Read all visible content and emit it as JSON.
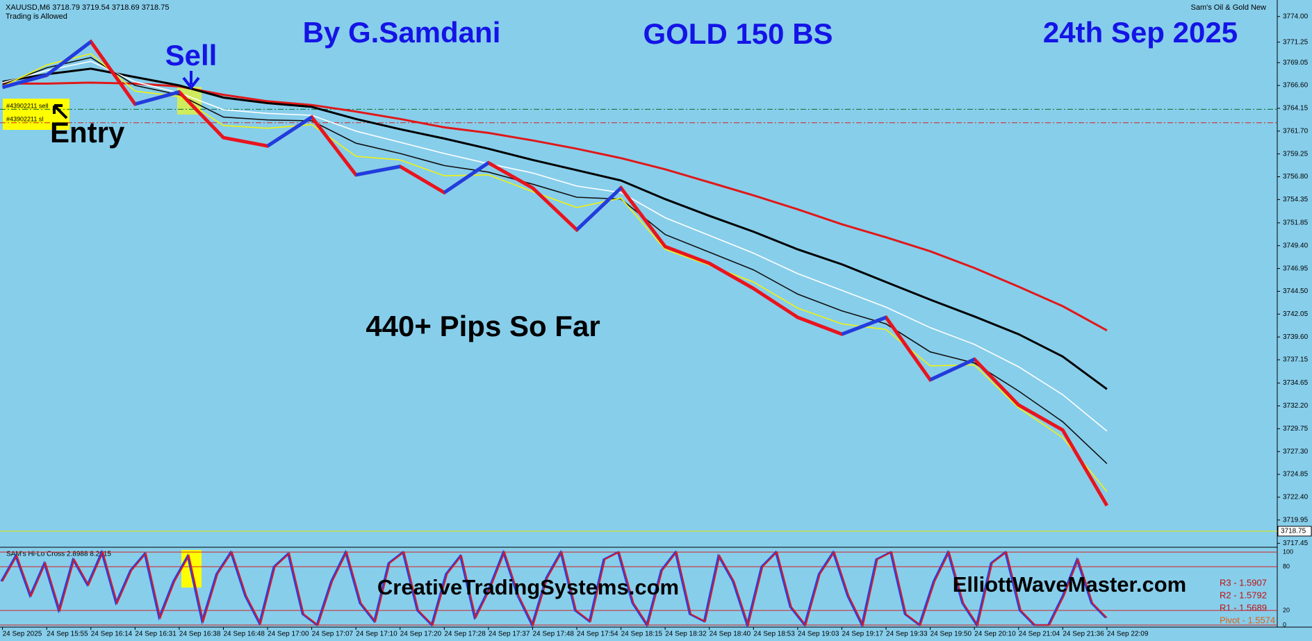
{
  "chart_data": {
    "type": "line",
    "symbol_header": "XAUUSD,M6  3718.79 3719.54 3718.69 3718.75",
    "trading_status": "Trading is Allowed",
    "indicator_title": "Sam's Oil & Gold New",
    "title": "GOLD 150 BS",
    "author": "By G.Samdani",
    "date": "24th Sep 2025",
    "signal_label": "Sell",
    "entry_label": "Entry",
    "result_label": "440+ Pips So Far",
    "website_left": "CreativeTradingSystems.com",
    "website_right": "ElliottWaveMaster.com",
    "order_labels": [
      "#43902211 sell",
      "#43902211 sl"
    ],
    "sell_level": 3764.04,
    "stop_level": 3762.6,
    "current_price": 3718.75,
    "categories": [
      "24 Sep 2025",
      "24 Sep 15:55",
      "24 Sep 16:14",
      "24 Sep 16:31",
      "24 Sep 16:38",
      "24 Sep 16:48",
      "24 Sep 17:00",
      "24 Sep 17:07",
      "24 Sep 17:10",
      "24 Sep 17:20",
      "24 Sep 17:28",
      "24 Sep 17:37",
      "24 Sep 17:48",
      "24 Sep 17:54",
      "24 Sep 18:15",
      "24 Sep 18:32",
      "24 Sep 18:40",
      "24 Sep 18:53",
      "24 Sep 19:03",
      "24 Sep 19:17",
      "24 Sep 19:33",
      "24 Sep 19:50",
      "24 Sep 20:10",
      "24 Sep 21:04",
      "24 Sep 21:36",
      "24 Sep 22:09"
    ],
    "series": [
      {
        "name": "Price",
        "color": "#e8141e",
        "up_color": "#1f3de0",
        "values": [
          3766.4,
          3767.7,
          3771.3,
          3764.6,
          3765.9,
          3761.0,
          3760.1,
          3763.2,
          3757.0,
          3757.9,
          3755.1,
          3758.3,
          3755.6,
          3751.1,
          3755.6,
          3749.3,
          3747.5,
          3744.8,
          3741.7,
          3739.9,
          3741.7,
          3735.0,
          3737.2,
          3732.3,
          3729.6,
          3721.5
        ]
      },
      {
        "name": "MA Red",
        "color": "#e01818",
        "values": [
          3766.8,
          3766.8,
          3766.9,
          3766.8,
          3766.5,
          3765.6,
          3764.9,
          3764.5,
          3763.8,
          3763.0,
          3762.1,
          3761.5,
          3760.7,
          3759.8,
          3758.8,
          3757.6,
          3756.2,
          3754.8,
          3753.3,
          3751.7,
          3750.3,
          3748.8,
          3747.0,
          3745.0,
          3742.9,
          3740.3
        ]
      },
      {
        "name": "MA Black",
        "color": "#000000",
        "values": [
          3767.0,
          3767.8,
          3768.4,
          3767.5,
          3766.6,
          3765.3,
          3764.7,
          3764.3,
          3763.0,
          3761.9,
          3760.9,
          3759.8,
          3758.6,
          3757.5,
          3756.4,
          3754.4,
          3752.6,
          3750.9,
          3749.0,
          3747.4,
          3745.5,
          3743.6,
          3741.8,
          3739.9,
          3737.5,
          3734.0
        ]
      },
      {
        "name": "MA White",
        "color": "#ffffff",
        "values": [
          3766.9,
          3768.2,
          3769.2,
          3767.0,
          3765.8,
          3764.0,
          3763.6,
          3763.4,
          3761.7,
          3760.5,
          3759.3,
          3758.2,
          3757.2,
          3755.8,
          3755.1,
          3752.4,
          3750.5,
          3748.6,
          3746.4,
          3744.6,
          3742.8,
          3740.6,
          3738.8,
          3736.4,
          3733.4,
          3729.5
        ]
      },
      {
        "name": "MA Fast",
        "color": "#111111",
        "values": [
          3766.7,
          3768.5,
          3769.6,
          3766.6,
          3765.6,
          3763.2,
          3762.9,
          3762.8,
          3760.4,
          3759.3,
          3758.0,
          3757.3,
          3756.0,
          3754.6,
          3754.4,
          3750.6,
          3748.7,
          3746.8,
          3744.2,
          3742.4,
          3741.0,
          3738.0,
          3736.8,
          3733.8,
          3730.5,
          3726.0
        ]
      },
      {
        "name": "MA Yellow",
        "color": "#f2f20a",
        "values": [
          3766.5,
          3768.8,
          3770.0,
          3766.0,
          3765.4,
          3762.3,
          3762.0,
          3762.4,
          3759.0,
          3758.6,
          3756.9,
          3757.0,
          3755.2,
          3753.5,
          3754.5,
          3749.0,
          3747.3,
          3745.5,
          3742.7,
          3741.0,
          3740.4,
          3736.5,
          3736.6,
          3732.0,
          3728.8,
          3723.0
        ]
      }
    ],
    "ylim": [
      3717.1,
      3775.4
    ],
    "yticks": [
      {
        "value": 3774,
        "label": "3774.00"
      },
      {
        "value": 3771.25,
        "label": "3771.25"
      },
      {
        "value": 3769.05,
        "label": "3769.05"
      },
      {
        "value": 3766.6,
        "label": "3766.60"
      },
      {
        "value": 3764.15,
        "label": "3764.15"
      },
      {
        "value": 3761.7,
        "label": "3761.70"
      },
      {
        "value": 3759.25,
        "label": "3759.25"
      },
      {
        "value": 3756.8,
        "label": "3756.80"
      },
      {
        "value": 3754.35,
        "label": "3754.35"
      },
      {
        "value": 3751.85,
        "label": "3751.85"
      },
      {
        "value": 3749.4,
        "label": "3749.40"
      },
      {
        "value": 3746.95,
        "label": "3746.95"
      },
      {
        "value": 3744.5,
        "label": "3744.50"
      },
      {
        "value": 3742.05,
        "label": "3742.05"
      },
      {
        "value": 3739.6,
        "label": "3739.60"
      },
      {
        "value": 3737.15,
        "label": "3737.15"
      },
      {
        "value": 3734.65,
        "label": "3734.65"
      },
      {
        "value": 3732.2,
        "label": "3732.20"
      },
      {
        "value": 3729.75,
        "label": "3729.75"
      },
      {
        "value": 3727.3,
        "label": "3727.30"
      },
      {
        "value": 3724.85,
        "label": "3724.85"
      },
      {
        "value": 3722.4,
        "label": "3722.40"
      },
      {
        "value": 3719.95,
        "label": "3719.95"
      },
      {
        "value": 3717.45,
        "label": "3717.45"
      }
    ],
    "oscillator": {
      "name": "SAM's Hi-Lo Cross 2.8988 8.2015",
      "color": "#e01818",
      "shadow_color": "#2b3fe0",
      "values": [
        60,
        95,
        40,
        85,
        20,
        90,
        55,
        100,
        30,
        75,
        98,
        10,
        60,
        95,
        5,
        70,
        100,
        40,
        2,
        80,
        98,
        15,
        0,
        60,
        100,
        30,
        5,
        85,
        100,
        20,
        0,
        70,
        95,
        10,
        50,
        100,
        40,
        0,
        65,
        100,
        20,
        5,
        90,
        100,
        30,
        0,
        75,
        100,
        15,
        5,
        95,
        60,
        0,
        80,
        100,
        25,
        0,
        70,
        100,
        40,
        0,
        90,
        100,
        15,
        0,
        60,
        100,
        30,
        0,
        85,
        100,
        20,
        0,
        0,
        40,
        90,
        30,
        10
      ],
      "ylim": [
        0,
        100
      ],
      "yticks": [
        0,
        20,
        80,
        100
      ],
      "pivot_labels": [
        "R3 - 1.5907",
        "R2 - 1.5792",
        "R1 - 1.5689",
        "Pivot - 1.5574"
      ]
    }
  }
}
